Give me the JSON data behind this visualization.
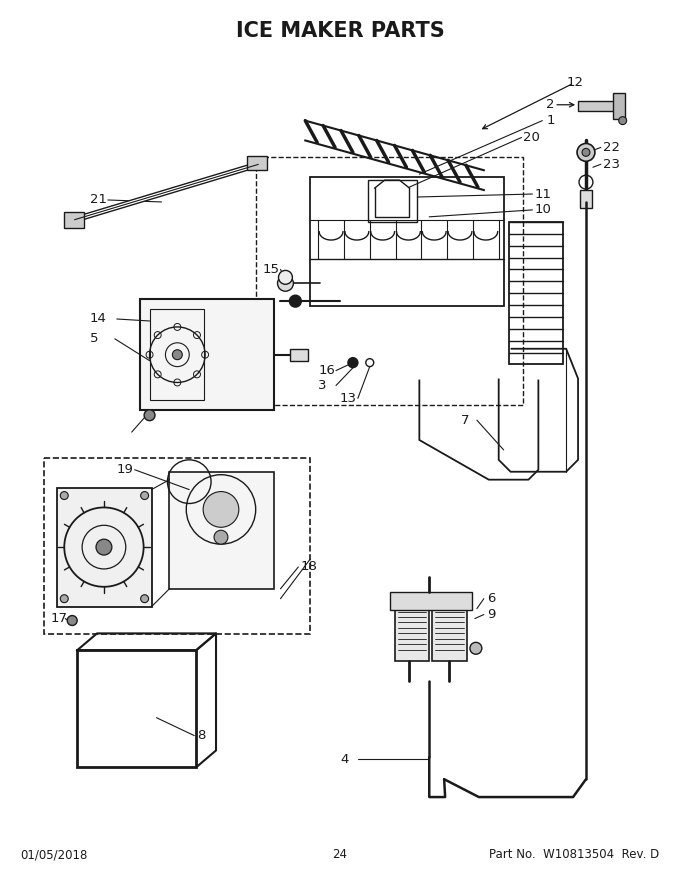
{
  "title": "ICE MAKER PARTS",
  "title_fontsize": 15,
  "title_fontweight": "bold",
  "background_color": "#ffffff",
  "line_color": "#1a1a1a",
  "footer_left": "01/05/2018",
  "footer_center": "24",
  "footer_right": "Part No.  W10813504  Rev. D",
  "footer_fontsize": 8.5,
  "label_fontsize": 9.5
}
